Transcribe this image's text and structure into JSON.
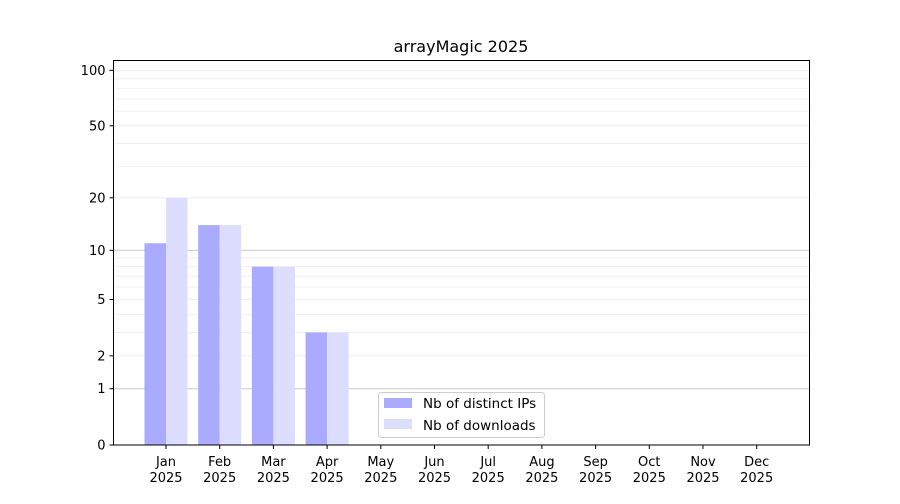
{
  "chart_data": {
    "type": "bar",
    "title": "arrayMagic 2025",
    "xlabel": "",
    "ylabel": "",
    "y_scale": "log(1+y)",
    "ylim": [
      0,
      113
    ],
    "y_ticks": [
      0,
      1,
      2,
      5,
      10,
      20,
      50,
      100
    ],
    "y_tick_labels": [
      "0",
      "1",
      "2",
      "5",
      "10",
      "20",
      "50",
      "100"
    ],
    "grid": true,
    "legend_position": "lower-center",
    "categories": [
      "Jan\n2025",
      "Feb\n2025",
      "Mar\n2025",
      "Apr\n2025",
      "May\n2025",
      "Jun\n2025",
      "Jul\n2025",
      "Aug\n2025",
      "Sep\n2025",
      "Oct\n2025",
      "Nov\n2025",
      "Dec\n2025"
    ],
    "category_lines": [
      [
        "Jan",
        "2025"
      ],
      [
        "Feb",
        "2025"
      ],
      [
        "Mar",
        "2025"
      ],
      [
        "Apr",
        "2025"
      ],
      [
        "May",
        "2025"
      ],
      [
        "Jun",
        "2025"
      ],
      [
        "Jul",
        "2025"
      ],
      [
        "Aug",
        "2025"
      ],
      [
        "Sep",
        "2025"
      ],
      [
        "Oct",
        "2025"
      ],
      [
        "Nov",
        "2025"
      ],
      [
        "Dec",
        "2025"
      ]
    ],
    "series": [
      {
        "name": "Nb of distinct IPs",
        "color": "#aaaaff",
        "values": [
          11,
          14,
          8,
          3,
          0,
          0,
          0,
          0,
          0,
          0,
          0,
          0
        ]
      },
      {
        "name": "Nb of downloads",
        "color": "#ddddff",
        "values": [
          20,
          14,
          8,
          3,
          0,
          0,
          0,
          0,
          0,
          0,
          0,
          0
        ]
      }
    ]
  }
}
